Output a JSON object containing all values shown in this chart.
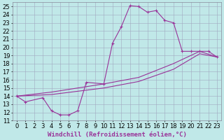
{
  "xlabel": "Windchill (Refroidissement éolien,°C)",
  "background_color": "#c0e8e8",
  "line_color": "#993399",
  "xlim": [
    -0.5,
    23.5
  ],
  "ylim": [
    11,
    25.5
  ],
  "xticks": [
    0,
    1,
    2,
    3,
    4,
    5,
    6,
    7,
    8,
    9,
    10,
    11,
    12,
    13,
    14,
    15,
    16,
    17,
    18,
    19,
    20,
    21,
    22,
    23
  ],
  "yticks": [
    11,
    12,
    13,
    14,
    15,
    16,
    17,
    18,
    19,
    20,
    21,
    22,
    23,
    24,
    25
  ],
  "curve_x": [
    0,
    1,
    3,
    4,
    5,
    6,
    7,
    8,
    10,
    11,
    12,
    13,
    14,
    15,
    16,
    17,
    18,
    19,
    20,
    21,
    22,
    23
  ],
  "curve_y": [
    14,
    13.3,
    13.8,
    12.2,
    11.7,
    11.7,
    12.2,
    15.7,
    15.5,
    20.5,
    22.5,
    25.1,
    25.0,
    24.3,
    24.5,
    23.3,
    23.0,
    19.5,
    19.5,
    19.5,
    19.5,
    18.8
  ],
  "diag1_x": [
    0,
    4,
    10,
    14,
    18,
    21,
    23
  ],
  "diag1_y": [
    14.0,
    14.5,
    15.5,
    16.3,
    18.0,
    19.5,
    18.8
  ],
  "diag2_x": [
    0,
    4,
    10,
    14,
    18,
    21,
    23
  ],
  "diag2_y": [
    14.0,
    14.2,
    15.0,
    15.8,
    17.3,
    19.2,
    18.8
  ],
  "grid_color": "#a0a8c0",
  "xlabel_fontsize": 6.5,
  "tick_fontsize": 6.0,
  "marker": "+"
}
